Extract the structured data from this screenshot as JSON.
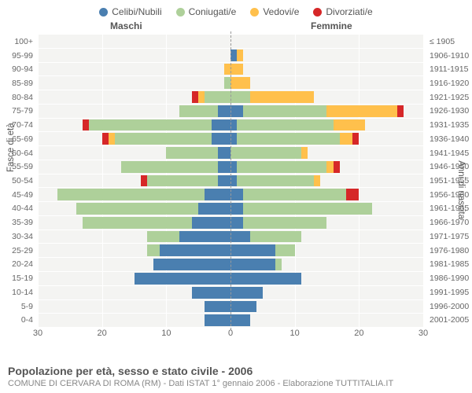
{
  "type": "population-pyramid",
  "legend": [
    {
      "label": "Celibi/Nubili",
      "color": "#4a7fb0"
    },
    {
      "label": "Coniugati/e",
      "color": "#aed09a"
    },
    {
      "label": "Vedovi/e",
      "color": "#ffc04c"
    },
    {
      "label": "Divorziati/e",
      "color": "#d62728"
    }
  ],
  "header_male": "Maschi",
  "header_female": "Femmine",
  "y_axis_left_title": "Fasce di età",
  "y_axis_right_title": "Anni di nascita",
  "xlim": 30,
  "xticks": [
    30,
    20,
    10,
    0,
    10,
    20,
    30
  ],
  "title": "Popolazione per età, sesso e stato civile - 2006",
  "subtitle": "COMUNE DI CERVARA DI ROMA (RM) - Dati ISTAT 1° gennaio 2006 - Elaborazione TUTTITALIA.IT",
  "background_color": "#f4f4f2",
  "grid_color": "#ffffff",
  "rows": [
    {
      "age": "100+",
      "birth": "≤ 1905",
      "m": {
        "c": 0,
        "g": 0,
        "v": 0,
        "d": 0
      },
      "f": {
        "c": 0,
        "g": 0,
        "v": 0,
        "d": 0
      }
    },
    {
      "age": "95-99",
      "birth": "1906-1910",
      "m": {
        "c": 0,
        "g": 0,
        "v": 0,
        "d": 0
      },
      "f": {
        "c": 1,
        "g": 0,
        "v": 1,
        "d": 0
      }
    },
    {
      "age": "90-94",
      "birth": "1911-1915",
      "m": {
        "c": 0,
        "g": 0,
        "v": 1,
        "d": 0
      },
      "f": {
        "c": 0,
        "g": 0,
        "v": 2,
        "d": 0
      }
    },
    {
      "age": "85-89",
      "birth": "1916-1920",
      "m": {
        "c": 0,
        "g": 1,
        "v": 0,
        "d": 0
      },
      "f": {
        "c": 0,
        "g": 0,
        "v": 3,
        "d": 0
      }
    },
    {
      "age": "80-84",
      "birth": "1921-1925",
      "m": {
        "c": 0,
        "g": 4,
        "v": 1,
        "d": 1
      },
      "f": {
        "c": 0,
        "g": 3,
        "v": 10,
        "d": 0
      }
    },
    {
      "age": "75-79",
      "birth": "1926-1930",
      "m": {
        "c": 2,
        "g": 6,
        "v": 0,
        "d": 0
      },
      "f": {
        "c": 2,
        "g": 13,
        "v": 11,
        "d": 1
      }
    },
    {
      "age": "70-74",
      "birth": "1931-1935",
      "m": {
        "c": 3,
        "g": 19,
        "v": 0,
        "d": 1
      },
      "f": {
        "c": 1,
        "g": 15,
        "v": 5,
        "d": 0
      }
    },
    {
      "age": "65-69",
      "birth": "1936-1940",
      "m": {
        "c": 3,
        "g": 15,
        "v": 1,
        "d": 1
      },
      "f": {
        "c": 1,
        "g": 16,
        "v": 2,
        "d": 1
      }
    },
    {
      "age": "60-64",
      "birth": "1941-1945",
      "m": {
        "c": 2,
        "g": 8,
        "v": 0,
        "d": 0
      },
      "f": {
        "c": 0,
        "g": 11,
        "v": 1,
        "d": 0
      }
    },
    {
      "age": "55-59",
      "birth": "1946-1950",
      "m": {
        "c": 2,
        "g": 15,
        "v": 0,
        "d": 0
      },
      "f": {
        "c": 1,
        "g": 14,
        "v": 1,
        "d": 1
      }
    },
    {
      "age": "50-54",
      "birth": "1951-1955",
      "m": {
        "c": 2,
        "g": 11,
        "v": 0,
        "d": 1
      },
      "f": {
        "c": 1,
        "g": 12,
        "v": 1,
        "d": 0
      }
    },
    {
      "age": "45-49",
      "birth": "1956-1960",
      "m": {
        "c": 4,
        "g": 23,
        "v": 0,
        "d": 0
      },
      "f": {
        "c": 2,
        "g": 16,
        "v": 0,
        "d": 2
      }
    },
    {
      "age": "40-44",
      "birth": "1961-1965",
      "m": {
        "c": 5,
        "g": 19,
        "v": 0,
        "d": 0
      },
      "f": {
        "c": 2,
        "g": 20,
        "v": 0,
        "d": 0
      }
    },
    {
      "age": "35-39",
      "birth": "1966-1970",
      "m": {
        "c": 6,
        "g": 17,
        "v": 0,
        "d": 0
      },
      "f": {
        "c": 2,
        "g": 13,
        "v": 0,
        "d": 0
      }
    },
    {
      "age": "30-34",
      "birth": "1971-1975",
      "m": {
        "c": 8,
        "g": 5,
        "v": 0,
        "d": 0
      },
      "f": {
        "c": 3,
        "g": 8,
        "v": 0,
        "d": 0
      }
    },
    {
      "age": "25-29",
      "birth": "1976-1980",
      "m": {
        "c": 11,
        "g": 2,
        "v": 0,
        "d": 0
      },
      "f": {
        "c": 7,
        "g": 3,
        "v": 0,
        "d": 0
      }
    },
    {
      "age": "20-24",
      "birth": "1981-1985",
      "m": {
        "c": 12,
        "g": 0,
        "v": 0,
        "d": 0
      },
      "f": {
        "c": 7,
        "g": 1,
        "v": 0,
        "d": 0
      }
    },
    {
      "age": "15-19",
      "birth": "1986-1990",
      "m": {
        "c": 15,
        "g": 0,
        "v": 0,
        "d": 0
      },
      "f": {
        "c": 11,
        "g": 0,
        "v": 0,
        "d": 0
      }
    },
    {
      "age": "10-14",
      "birth": "1991-1995",
      "m": {
        "c": 6,
        "g": 0,
        "v": 0,
        "d": 0
      },
      "f": {
        "c": 5,
        "g": 0,
        "v": 0,
        "d": 0
      }
    },
    {
      "age": "5-9",
      "birth": "1996-2000",
      "m": {
        "c": 4,
        "g": 0,
        "v": 0,
        "d": 0
      },
      "f": {
        "c": 4,
        "g": 0,
        "v": 0,
        "d": 0
      }
    },
    {
      "age": "0-4",
      "birth": "2001-2005",
      "m": {
        "c": 4,
        "g": 0,
        "v": 0,
        "d": 0
      },
      "f": {
        "c": 3,
        "g": 0,
        "v": 0,
        "d": 0
      }
    }
  ]
}
